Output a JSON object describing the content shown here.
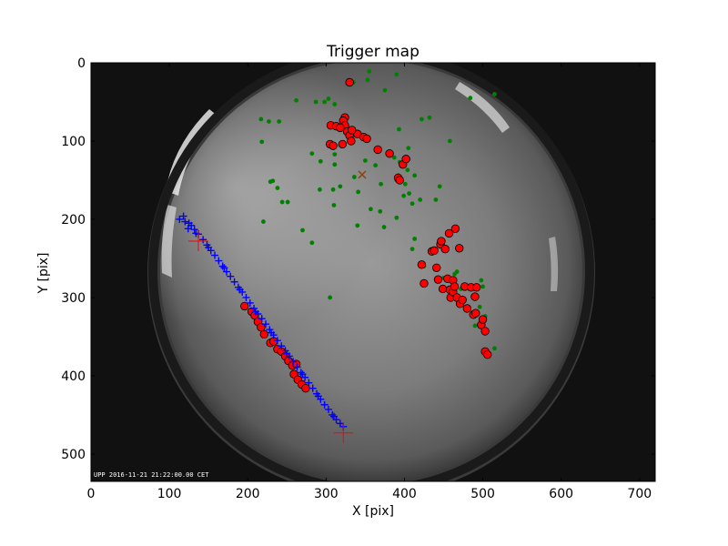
{
  "chart_data": {
    "type": "scatter",
    "title": "Trigger map",
    "xlabel": "X [pix]",
    "ylabel": "Y [pix]",
    "xlim": [
      0,
      720
    ],
    "ylim": [
      535,
      0
    ],
    "y_inverted": true,
    "xticks": [
      "0",
      "100",
      "200",
      "300",
      "400",
      "500",
      "600",
      "700"
    ],
    "yticks": [
      "0",
      "100",
      "200",
      "300",
      "400",
      "500"
    ],
    "image_stamp": "UPP 2016-11-21 21:22:00.00 CET",
    "colors": {
      "green": "#008000",
      "red": "#ff0000",
      "blue": "#0000ff",
      "magenta": "#ff0000",
      "brown": "#8b4513"
    },
    "series": [
      {
        "marker": "green-dot",
        "points": [
          [
            262,
            48
          ],
          [
            287,
            50
          ],
          [
            298,
            50
          ],
          [
            303,
            46
          ],
          [
            311,
            53
          ],
          [
            335,
            25
          ],
          [
            355,
            11
          ],
          [
            353,
            22
          ],
          [
            375,
            35
          ],
          [
            393,
            85
          ],
          [
            390,
            15
          ],
          [
            422,
            72
          ],
          [
            432,
            70
          ],
          [
            217,
            72
          ],
          [
            218,
            101
          ],
          [
            227,
            75
          ],
          [
            240,
            75
          ],
          [
            282,
            116
          ],
          [
            293,
            126
          ],
          [
            311,
            117
          ],
          [
            318,
            105
          ],
          [
            311,
            130
          ],
          [
            349,
            97
          ],
          [
            318,
            158
          ],
          [
            350,
            125
          ],
          [
            357,
            187
          ],
          [
            363,
            131
          ],
          [
            387,
            121
          ],
          [
            394,
            127
          ],
          [
            405,
            109
          ],
          [
            398,
            128
          ],
          [
            410,
            180
          ],
          [
            390,
            198
          ],
          [
            392,
            144
          ],
          [
            401,
            155
          ],
          [
            413,
            144
          ],
          [
            390,
            150
          ],
          [
            413,
            225
          ],
          [
            420,
            175
          ],
          [
            425,
            260
          ],
          [
            238,
            160
          ],
          [
            232,
            151
          ],
          [
            244,
            178
          ],
          [
            251,
            178
          ],
          [
            292,
            162
          ],
          [
            282,
            230
          ],
          [
            229,
            152
          ],
          [
            220,
            203
          ],
          [
            305,
            300
          ],
          [
            340,
            208
          ],
          [
            374,
            210
          ],
          [
            410,
            238
          ],
          [
            399,
            170
          ],
          [
            370,
            155
          ],
          [
            336,
            146
          ],
          [
            450,
            275
          ],
          [
            464,
            270
          ],
          [
            472,
            289
          ],
          [
            490,
            300
          ],
          [
            496,
            312
          ],
          [
            503,
            324
          ],
          [
            440,
            175
          ],
          [
            310,
            182
          ],
          [
            270,
            214
          ],
          [
            309,
            162
          ],
          [
            341,
            165
          ],
          [
            369,
            190
          ],
          [
            404,
            137
          ],
          [
            406,
            167
          ],
          [
            445,
            158
          ],
          [
            458,
            100
          ],
          [
            515,
            40
          ],
          [
            484,
            45
          ],
          [
            515,
            365
          ],
          [
            498,
            278
          ],
          [
            500,
            286
          ],
          [
            467,
            267
          ],
          [
            490,
            336
          ]
        ]
      },
      {
        "marker": "red-circle",
        "points": [
          [
            330,
            25
          ],
          [
            324,
            70
          ],
          [
            322,
            74
          ],
          [
            324,
            80
          ],
          [
            327,
            88
          ],
          [
            330,
            93
          ],
          [
            332,
            100
          ],
          [
            340,
            91
          ],
          [
            348,
            95
          ],
          [
            352,
            97
          ],
          [
            306,
            80
          ],
          [
            313,
            81
          ],
          [
            318,
            83
          ],
          [
            305,
            104
          ],
          [
            309,
            106
          ],
          [
            321,
            104
          ],
          [
            333,
            86
          ],
          [
            392,
            147
          ],
          [
            394,
            150
          ],
          [
            398,
            130
          ],
          [
            402,
            123
          ],
          [
            366,
            111
          ],
          [
            381,
            116
          ],
          [
            422,
            258
          ],
          [
            425,
            282
          ],
          [
            435,
            241
          ],
          [
            438,
            240
          ],
          [
            441,
            262
          ],
          [
            443,
            277
          ],
          [
            446,
            232
          ],
          [
            447,
            228
          ],
          [
            449,
            289
          ],
          [
            455,
            276
          ],
          [
            458,
            290
          ],
          [
            459,
            300
          ],
          [
            462,
            278
          ],
          [
            462,
            293
          ],
          [
            464,
            286
          ],
          [
            467,
            300
          ],
          [
            471,
            308
          ],
          [
            474,
            303
          ],
          [
            477,
            286
          ],
          [
            480,
            314
          ],
          [
            485,
            287
          ],
          [
            488,
            322
          ],
          [
            490,
            299
          ],
          [
            491,
            320
          ],
          [
            492,
            287
          ],
          [
            498,
            335
          ],
          [
            500,
            328
          ],
          [
            503,
            343
          ],
          [
            503,
            369
          ],
          [
            506,
            373
          ],
          [
            465,
            212
          ],
          [
            457,
            218
          ],
          [
            452,
            238
          ],
          [
            470,
            237
          ],
          [
            196,
            311
          ],
          [
            205,
            318
          ],
          [
            209,
            323
          ],
          [
            213,
            331
          ],
          [
            217,
            338
          ],
          [
            221,
            347
          ],
          [
            229,
            358
          ],
          [
            233,
            356
          ],
          [
            238,
            366
          ],
          [
            243,
            369
          ],
          [
            248,
            375
          ],
          [
            252,
            381
          ],
          [
            257,
            387
          ],
          [
            262,
            385
          ],
          [
            259,
            398
          ],
          [
            264,
            405
          ],
          [
            269,
            411
          ],
          [
            274,
            416
          ]
        ]
      },
      {
        "marker": "blue-plus",
        "points": [
          [
            113,
            200
          ],
          [
            118,
            196
          ],
          [
            120,
            203
          ],
          [
            125,
            205
          ],
          [
            128,
            208
          ],
          [
            132,
            213
          ],
          [
            137,
            219
          ],
          [
            143,
            226
          ],
          [
            148,
            233
          ],
          [
            153,
            240
          ],
          [
            158,
            246
          ],
          [
            163,
            253
          ],
          [
            168,
            260
          ],
          [
            173,
            267
          ],
          [
            178,
            273
          ],
          [
            183,
            280
          ],
          [
            188,
            287
          ],
          [
            193,
            293
          ],
          [
            198,
            300
          ],
          [
            203,
            307
          ],
          [
            208,
            314
          ],
          [
            213,
            321
          ],
          [
            218,
            327
          ],
          [
            223,
            334
          ],
          [
            228,
            341
          ],
          [
            233,
            348
          ],
          [
            238,
            355
          ],
          [
            243,
            362
          ],
          [
            248,
            368
          ],
          [
            253,
            375
          ],
          [
            258,
            382
          ],
          [
            263,
            389
          ],
          [
            268,
            396
          ],
          [
            273,
            402
          ],
          [
            278,
            409
          ],
          [
            283,
            416
          ],
          [
            288,
            423
          ],
          [
            293,
            430
          ],
          [
            298,
            437
          ],
          [
            303,
            443
          ],
          [
            308,
            450
          ],
          [
            313,
            456
          ],
          [
            318,
            461
          ],
          [
            322,
            465
          ],
          [
            124,
            212
          ],
          [
            134,
            218
          ],
          [
            150,
            236
          ],
          [
            170,
            262
          ],
          [
            190,
            290
          ],
          [
            210,
            318
          ],
          [
            230,
            345
          ],
          [
            250,
            372
          ],
          [
            270,
            398
          ],
          [
            290,
            426
          ],
          [
            310,
            452
          ]
        ]
      },
      {
        "marker": "magenta-cross",
        "points": [
          [
            322,
            473
          ],
          [
            137,
            228
          ]
        ]
      },
      {
        "marker": "brown-x",
        "points": [
          [
            346,
            143
          ]
        ]
      }
    ]
  }
}
